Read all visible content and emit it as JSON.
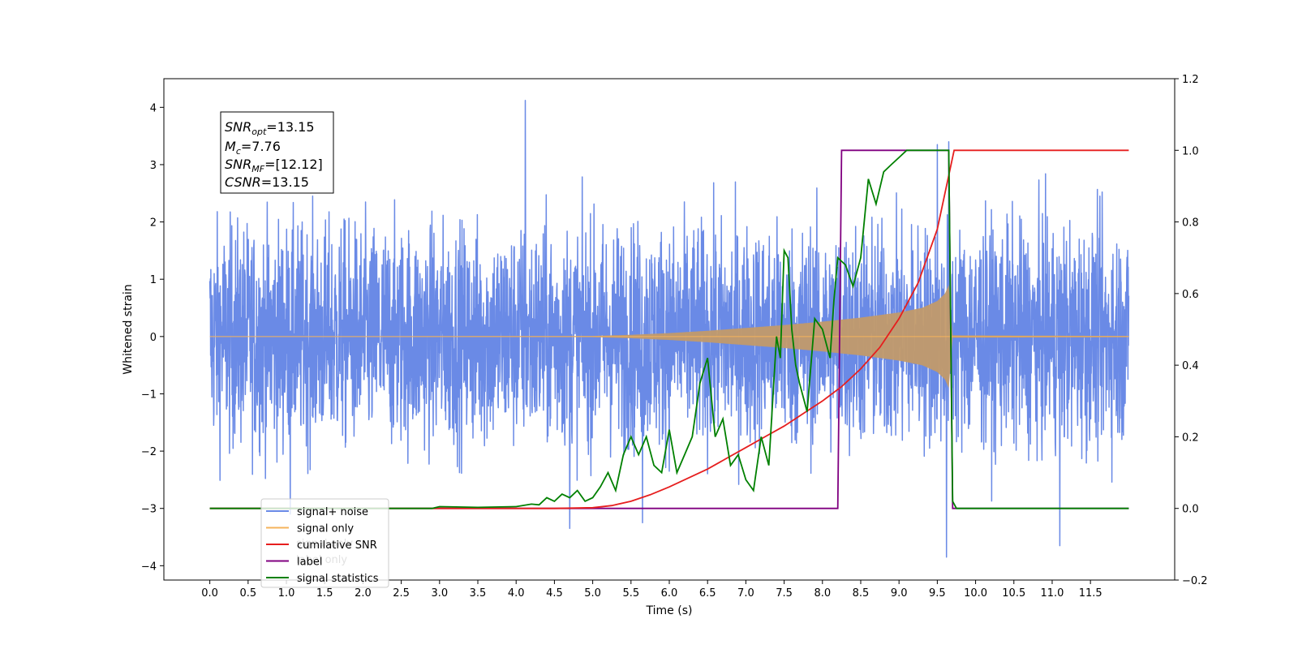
{
  "chart_data": {
    "type": "line",
    "xlabel": "Time (s)",
    "ylabel_left": "Whitened strain",
    "xlim": [
      -0.6,
      12.6
    ],
    "ylim_left": [
      -4.25,
      4.5
    ],
    "ylim_right": [
      -0.2,
      1.2
    ],
    "x_ticks": [
      "0.0",
      "0.5",
      "1.0",
      "1.5",
      "2.0",
      "2.5",
      "3.0",
      "3.5",
      "4.0",
      "4.5",
      "5.0",
      "5.5",
      "6.0",
      "6.5",
      "7.0",
      "7.5",
      "8.0",
      "8.5",
      "9.0",
      "9.5",
      "10.0",
      "10.5",
      "11.0",
      "11.5"
    ],
    "y_ticks_left": [
      "4",
      "3",
      "2",
      "1",
      "0",
      "−1",
      "−2",
      "−3",
      "−4"
    ],
    "y_ticks_right": [
      "1.2",
      "1.0",
      "0.8",
      "0.6",
      "0.4",
      "0.2",
      "0.0",
      "−0.2"
    ],
    "grid": false,
    "legend_position": "lower-left",
    "annotation": {
      "snr_opt": "=13.15",
      "mc": "=7.76",
      "snr_mf": "=[12.12]",
      "csnr": "=13.15"
    },
    "series": [
      {
        "name": "signal+ noise",
        "axis": "left",
        "color": "#6a8ae6",
        "x_range": [
          0,
          12
        ],
        "note_values": "dense whitened noise, typical amplitude about ±1.5 with spikes to about ±3.5",
        "spikes": [
          [
            4.12,
            4.12
          ],
          [
            9.65,
            3.4
          ],
          [
            9.62,
            -3.85
          ],
          [
            11.1,
            -3.65
          ],
          [
            4.7,
            -3.35
          ],
          [
            5.65,
            -3.25
          ],
          [
            1.05,
            -3.1
          ],
          [
            9.5,
            3.35
          ]
        ]
      },
      {
        "name": "signal only",
        "axis": "left",
        "color": "#f5b35b",
        "envelope_x": [
          0,
          5.0,
          5.5,
          6.0,
          6.5,
          7.0,
          7.5,
          8.0,
          8.5,
          9.0,
          9.3,
          9.5,
          9.6,
          9.65,
          9.7,
          12.0
        ],
        "envelope_amp": [
          0,
          0.01,
          0.03,
          0.06,
          0.1,
          0.15,
          0.2,
          0.26,
          0.33,
          0.42,
          0.5,
          0.62,
          0.75,
          0.9,
          0.02,
          0.01
        ]
      },
      {
        "name": "cumilative SNR",
        "axis": "right",
        "color": "#e61e1e",
        "x": [
          0,
          4.5,
          5.0,
          5.25,
          5.5,
          5.75,
          6.0,
          6.25,
          6.5,
          6.75,
          7.0,
          7.25,
          7.5,
          7.75,
          8.0,
          8.25,
          8.5,
          8.75,
          9.0,
          9.25,
          9.5,
          9.65,
          9.72,
          12.0
        ],
        "values": [
          0,
          0,
          0.002,
          0.008,
          0.02,
          0.038,
          0.06,
          0.085,
          0.11,
          0.14,
          0.17,
          0.2,
          0.23,
          0.265,
          0.3,
          0.34,
          0.39,
          0.45,
          0.53,
          0.63,
          0.78,
          0.93,
          1.0,
          1.0
        ]
      },
      {
        "name": "label",
        "axis": "right",
        "color": "#800080",
        "x": [
          0,
          8.2,
          8.25,
          9.65,
          9.7,
          12.0
        ],
        "values": [
          0,
          0,
          1.0,
          1.0,
          0,
          0
        ]
      },
      {
        "name": "signal statistics",
        "axis": "right",
        "color": "#008000",
        "x": [
          0,
          2.9,
          3.0,
          3.5,
          4.0,
          4.2,
          4.3,
          4.4,
          4.5,
          4.6,
          4.7,
          4.8,
          4.9,
          5.0,
          5.1,
          5.2,
          5.3,
          5.4,
          5.5,
          5.6,
          5.7,
          5.8,
          5.9,
          6.0,
          6.1,
          6.2,
          6.3,
          6.4,
          6.5,
          6.6,
          6.7,
          6.8,
          6.9,
          7.0,
          7.1,
          7.2,
          7.3,
          7.4,
          7.45,
          7.5,
          7.55,
          7.6,
          7.65,
          7.7,
          7.8,
          7.9,
          8.0,
          8.1,
          8.15,
          8.2,
          8.3,
          8.4,
          8.5,
          8.6,
          8.7,
          8.8,
          8.9,
          9.0,
          9.1,
          9.2,
          9.3,
          9.4,
          9.5,
          9.55,
          9.6,
          9.65,
          9.7,
          9.75,
          12.0
        ],
        "values": [
          0,
          0,
          0.005,
          0.003,
          0.005,
          0.012,
          0.01,
          0.03,
          0.02,
          0.04,
          0.03,
          0.05,
          0.02,
          0.03,
          0.06,
          0.1,
          0.05,
          0.15,
          0.2,
          0.15,
          0.2,
          0.12,
          0.1,
          0.22,
          0.1,
          0.15,
          0.2,
          0.35,
          0.42,
          0.2,
          0.25,
          0.12,
          0.15,
          0.08,
          0.05,
          0.2,
          0.12,
          0.48,
          0.42,
          0.72,
          0.7,
          0.5,
          0.4,
          0.35,
          0.27,
          0.53,
          0.5,
          0.42,
          0.58,
          0.7,
          0.68,
          0.62,
          0.7,
          0.92,
          0.85,
          0.94,
          0.96,
          0.98,
          1.0,
          1.0,
          1.0,
          1.0,
          1.0,
          1.0,
          1.0,
          1.0,
          0.02,
          0,
          0
        ]
      }
    ],
    "legend_extra_overlapped_labels": [
      "signal only",
      "label only"
    ]
  }
}
